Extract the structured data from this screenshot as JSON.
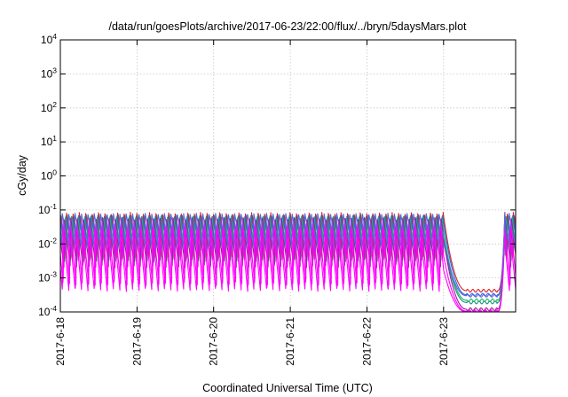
{
  "chart_data": {
    "type": "line",
    "title": "/data/run/goesPlots/archive/2017-06-23/22:00/flux/../bryn/5daysMars.plot",
    "xlabel": "Coordinated Universal Time (UTC)",
    "ylabel": "cGy/day",
    "yscale": "log",
    "ylim": [
      0.0001,
      10000
    ],
    "xlim": [
      0,
      5.94
    ],
    "x_unit": "days since 2017-6-18 00:00 UTC",
    "grid": true,
    "yticks": [
      {
        "value": 0.0001,
        "base": "10",
        "exp": "-4"
      },
      {
        "value": 0.001,
        "base": "10",
        "exp": "-3"
      },
      {
        "value": 0.01,
        "base": "10",
        "exp": "-2"
      },
      {
        "value": 0.1,
        "base": "10",
        "exp": "-1"
      },
      {
        "value": 1,
        "base": "10",
        "exp": "0"
      },
      {
        "value": 10,
        "base": "10",
        "exp": "1"
      },
      {
        "value": 100,
        "base": "10",
        "exp": "2"
      },
      {
        "value": 1000,
        "base": "10",
        "exp": "3"
      },
      {
        "value": 10000,
        "base": "10",
        "exp": "4"
      }
    ],
    "xticks": [
      {
        "value": 0,
        "label": "2017-6-18"
      },
      {
        "value": 1,
        "label": "2017-6-19"
      },
      {
        "value": 2,
        "label": "2017-6-20"
      },
      {
        "value": 3,
        "label": "2017-6-21"
      },
      {
        "value": 4,
        "label": "2017-6-22"
      },
      {
        "value": 5,
        "label": "2017-6-23"
      }
    ],
    "cycle_period_days": 0.0833,
    "series": [
      {
        "color": "#1a8f8f",
        "peak": 0.075,
        "trough": 0.0055,
        "quiet": 0.00019
      },
      {
        "color": "#e02020",
        "peak": 0.085,
        "trough": 0.0035,
        "quiet": 0.00042
      },
      {
        "color": "#1f6fe8",
        "peak": 0.07,
        "trough": 0.006,
        "quiet": 0.00032
      },
      {
        "color": "#1fb85a",
        "peak": 0.065,
        "trough": 0.003,
        "quiet": 0.00022
      },
      {
        "color": "#a0159a",
        "peak": 0.06,
        "trough": 0.002,
        "quiet": 0.00012
      },
      {
        "color": "#ff00ff",
        "peak": 0.05,
        "trough": 0.0006,
        "quiet": 0.000105
      },
      {
        "color": "#ff00ff",
        "peak": 0.03,
        "trough": 0.0004,
        "quiet": 0.0001
      },
      {
        "color": "#6060e0",
        "peak": 0.08,
        "trough": 0.009,
        "quiet": 0.0003
      }
    ],
    "event": {
      "decay_start": 5.0,
      "quiet_start": 5.3,
      "quiet_end": 5.7,
      "recover_end": 5.8
    }
  }
}
